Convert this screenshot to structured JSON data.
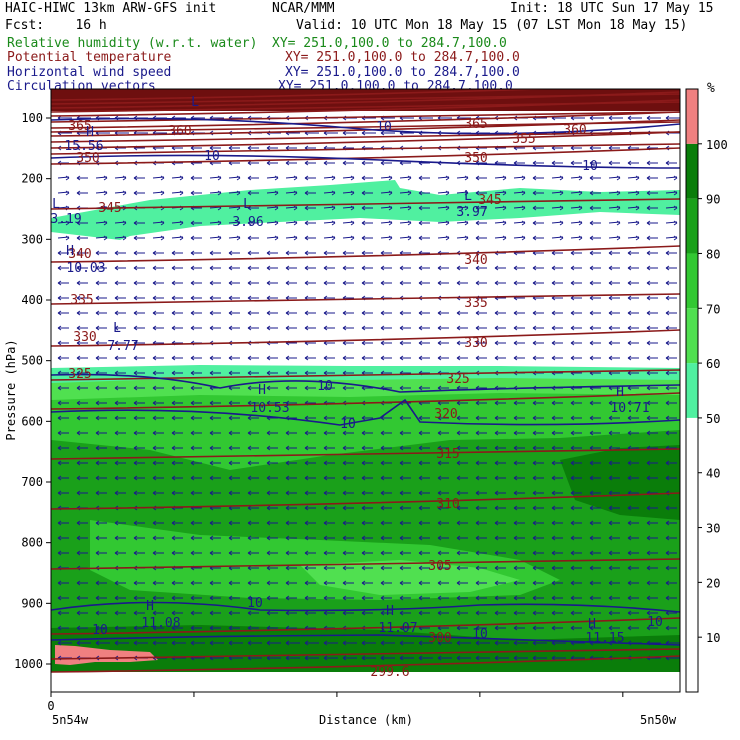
{
  "header": {
    "model": "HAIC-HIWC 13km ARW-GFS init",
    "org": "NCAR/MMM",
    "init": "Init: 18 UTC Sun 17 May 15",
    "fcst": "Fcst:    16 h",
    "valid": "Valid: 10 UTC Mon 18 May 15 (07 LST Mon 18 May 15)",
    "fields": [
      {
        "name": "Relative humidity (w.r.t. water)",
        "xy": "XY= 251.0,100.0 to 284.7,100.0",
        "color": "#1a8a1a"
      },
      {
        "name": "Potential temperature",
        "xy": "XY= 251.0,100.0 to 284.7,100.0",
        "color": "#8b1a1a"
      },
      {
        "name": "Horizontal wind speed",
        "xy": "XY= 251.0,100.0 to 284.7,100.0",
        "color": "#1a1a8b"
      },
      {
        "name": "Circulation vectors",
        "xy": "XY= 251.0,100.0 to 284.7,100.0",
        "color": "#1a1a8b"
      }
    ]
  },
  "chart_data": {
    "type": "heatmap",
    "xlabel": "Distance (km)",
    "ylabel": "Pressure (hPa)",
    "x_ticks": [
      "0"
    ],
    "x_endpoints": [
      "5n54w",
      "5n50w"
    ],
    "y_ticks": [
      100,
      200,
      300,
      400,
      500,
      600,
      700,
      800,
      900,
      1000
    ],
    "ylim": [
      1000,
      100
    ],
    "colorbar": {
      "unit": "%",
      "levels": [
        10,
        20,
        30,
        40,
        50,
        60,
        70,
        80,
        90,
        100
      ],
      "colors": [
        "#ffffff",
        "#ffffff",
        "#ffffff",
        "#ffffff",
        "#ffffff",
        "#50f0a0",
        "#50e050",
        "#32c832",
        "#1aa01a",
        "#0a7d0a",
        "#f08080"
      ]
    },
    "theta_labels": [
      "365",
      "360",
      "355",
      "350",
      "345",
      "340",
      "335",
      "330",
      "325",
      "320",
      "315",
      "310",
      "305",
      "300",
      "299.6"
    ],
    "wind_labels": [
      "10",
      "15.56",
      "3.19",
      "3.96",
      "3.97",
      "10.03",
      "7.77",
      "10.53",
      "10.71",
      "11.08",
      "11.07",
      "11.15"
    ],
    "extrema_markers": [
      "H",
      "L"
    ],
    "colors": {
      "theta": "#8b1a1a",
      "wind": "#1a1a8b",
      "vector": "#1a1a8b",
      "top_band": "#6e0f0f"
    }
  }
}
